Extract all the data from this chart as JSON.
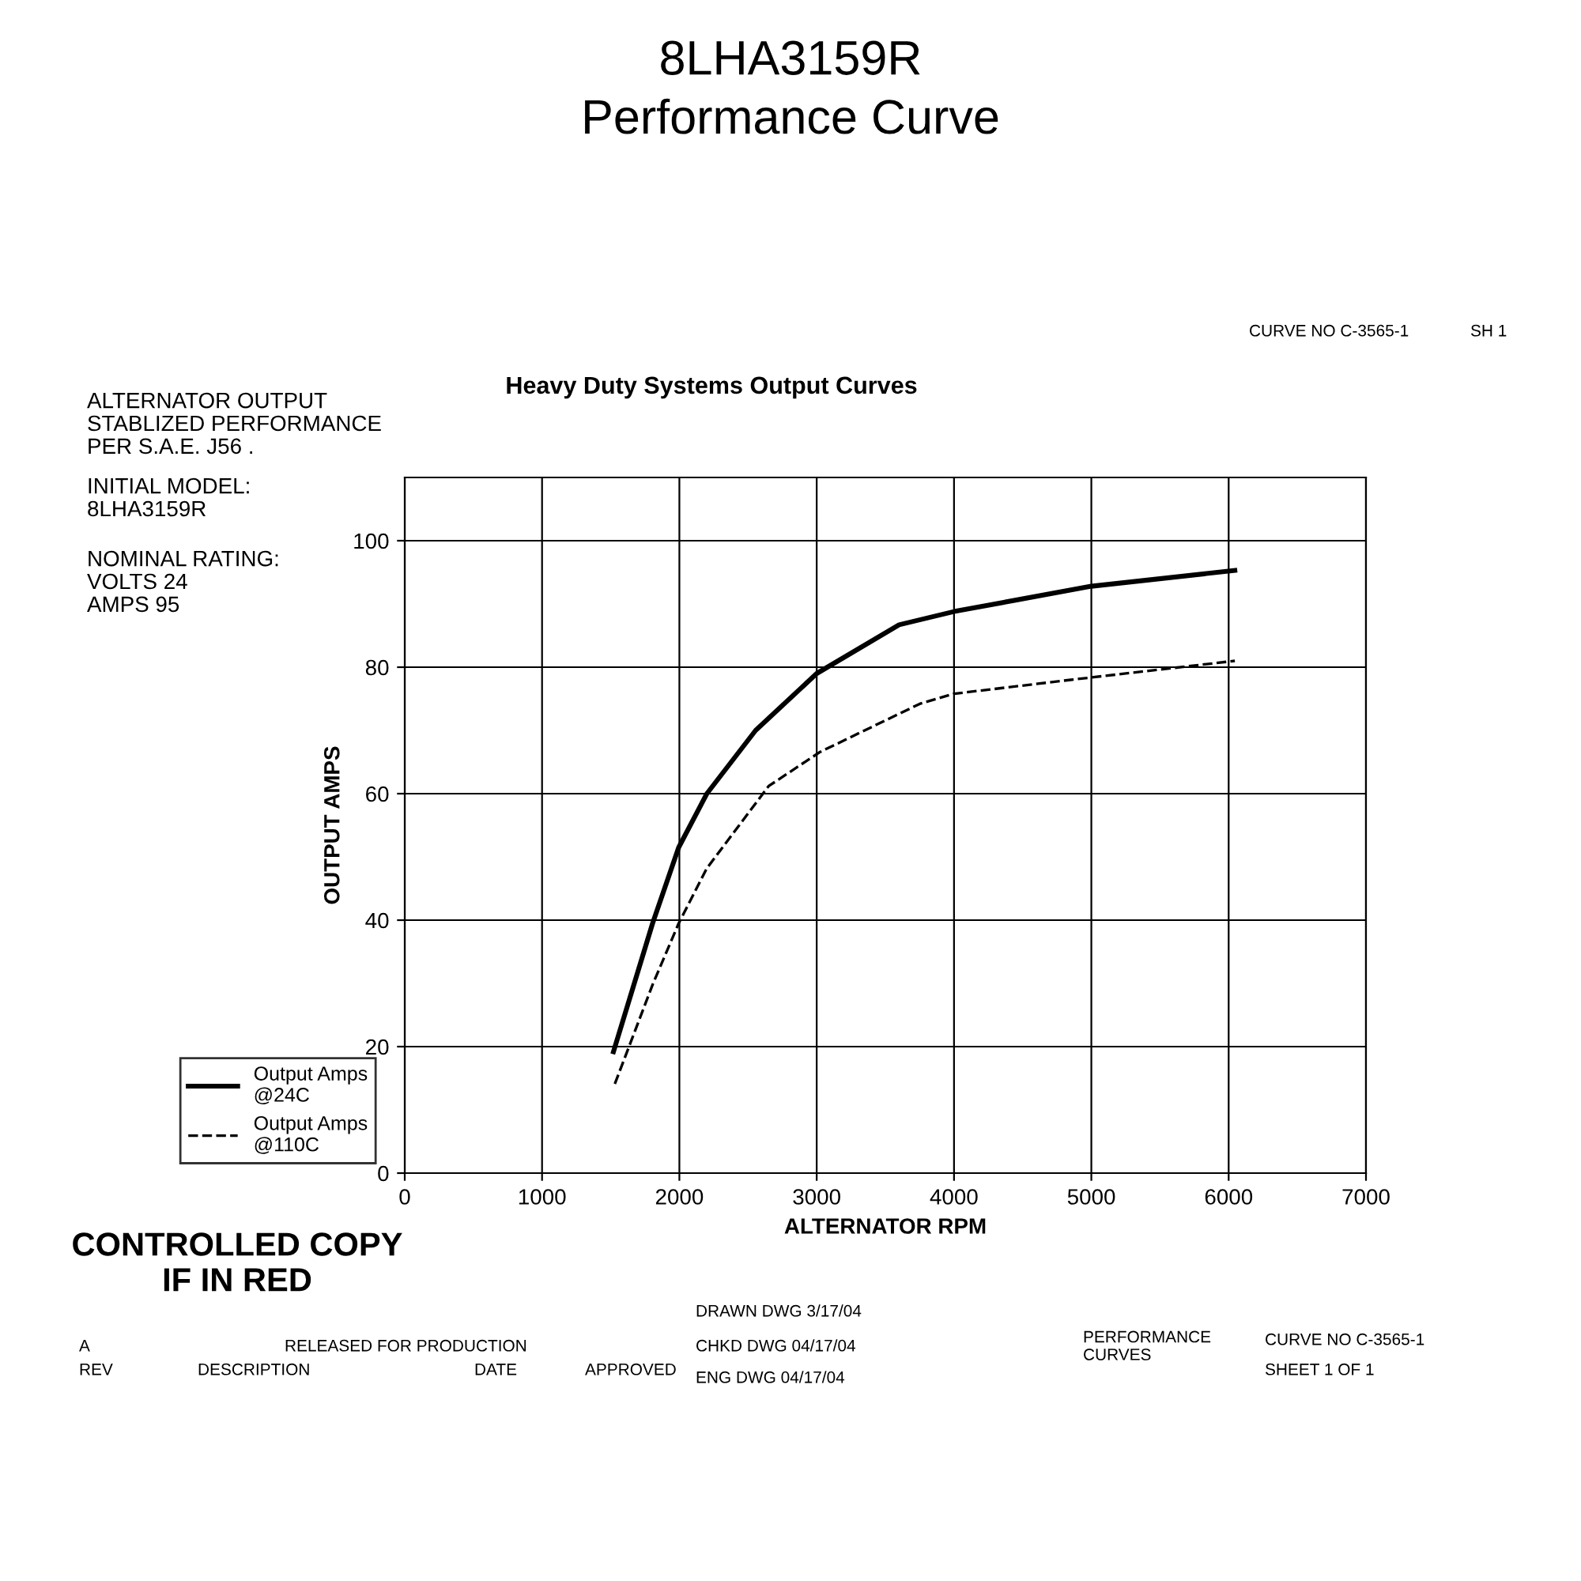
{
  "chart_data": {
    "type": "line",
    "title": "8LHA3159R\nPerformance Curve",
    "subtitle": "Heavy Duty Systems Output Curves",
    "xlabel": "ALTERNATOR RPM",
    "ylabel": "OUTPUT AMPS",
    "series": [
      {
        "name": "Output Amps\n@24C",
        "color": "#000000",
        "line_style": "solid",
        "x": [
          1520,
          1805,
          1995,
          2200,
          2555,
          3000,
          3600,
          4000,
          5000,
          6045
        ],
        "values": [
          19.2,
          39.5,
          51.5,
          60,
          70,
          79,
          86.7,
          88.8,
          92.8,
          95.3
        ]
      },
      {
        "name": "Output Amps\n@110C",
        "color": "#000000",
        "line_style": "dashed",
        "x": [
          1530,
          1805,
          1995,
          2200,
          2650,
          3025,
          3750,
          4000,
          4850,
          6045
        ],
        "values": [
          14.1,
          29.8,
          39.5,
          48.2,
          61.2,
          66.6,
          74.2,
          75.8,
          78,
          81
        ]
      }
    ],
    "xlim": [
      0,
      7000
    ],
    "xticks": [
      0,
      1000,
      2000,
      3000,
      4000,
      5000,
      6000,
      7000
    ],
    "ylim": [
      0,
      110
    ],
    "yticks": [
      0,
      20,
      40,
      60,
      80,
      100
    ],
    "grid": true,
    "legend": "bottom left",
    "marker": "none",
    "annotations": [
      "ALTERNATOR OUTPUT\nSTABLIZED PERFORMANCE\nPER S.A.E. J56 .",
      "INITIAL MODEL:\n8LHA3159R",
      "NOMINAL RATING:\nVOLTS 24\nAMPS 95",
      "CONTROLLED COPY\nIF IN RED",
      "CURVE NO C-3565-1",
      "SH 1",
      "A",
      "RELEASED FOR PRODUCTION",
      "REV",
      "DESCRIPTION",
      "DATE",
      "APPROVED",
      "DRAWN DWG 3/17/04",
      "CHKD DWG 04/17/04",
      "ENG DWG 04/17/04",
      "PERFORMANCE\nCURVES",
      "CURVE NO C-3565-1",
      "SHEET 1 OF 1"
    ]
  }
}
